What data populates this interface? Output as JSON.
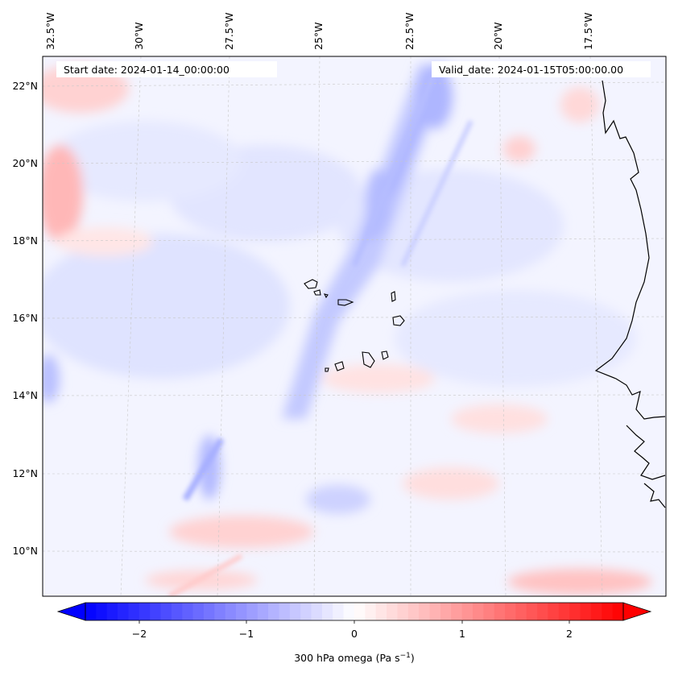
{
  "header": {
    "start_date": "Start date: 2024-01-14_00:00:00",
    "valid_date": "Valid_date: 2024-01-15T05:00:00.00"
  },
  "axes": {
    "lon_labels": [
      "32.5°W",
      "30°W",
      "27.5°W",
      "25°W",
      "22.5°W",
      "20°W",
      "17.5°W"
    ],
    "lat_labels": [
      "22°N",
      "20°N",
      "18°N",
      "16°N",
      "14°N",
      "12°N",
      "10°N"
    ]
  },
  "colorbar": {
    "label": "300 hPa omega (Pa s",
    "label_sup": "−1",
    "label_end": ")",
    "ticks": [
      "−2",
      "−1",
      "0",
      "1",
      "2"
    ],
    "colormap": "bwr",
    "range": [
      -2.5,
      2.5
    ],
    "extend": "both"
  },
  "colors": {
    "negative": "#0000ff",
    "neutral": "#ffffff",
    "positive": "#ff0000",
    "coastline": "#000000",
    "grid": "#bbbbbb"
  },
  "map": {
    "field": "300 hPa omega",
    "lon_range": [
      -32.8,
      -15.6
    ],
    "lat_range": [
      8.9,
      22.8
    ],
    "projection": "Lambert conformal",
    "gridlines": true,
    "coastlines": [
      "West African coast",
      "Cape Verde islands"
    ]
  }
}
